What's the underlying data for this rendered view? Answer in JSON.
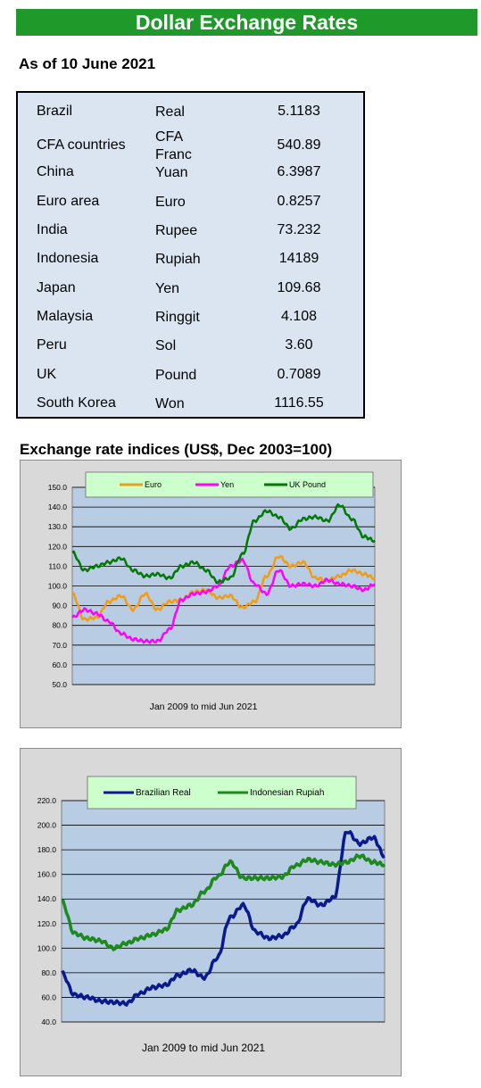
{
  "header": {
    "title": "Dollar Exchange Rates",
    "as_of": "As of 10 June 2021"
  },
  "rates": [
    {
      "country": "Brazil",
      "currency": "Real",
      "rate": "5.1183"
    },
    {
      "country": "CFA countries",
      "currency": "CFA Franc",
      "rate": "540.89"
    },
    {
      "country": "China",
      "currency": "Yuan",
      "rate": "6.3987"
    },
    {
      "country": "Euro area",
      "currency": "Euro",
      "rate": "0.8257"
    },
    {
      "country": "India",
      "currency": "Rupee",
      "rate": "73.232"
    },
    {
      "country": "Indonesia",
      "currency": "Rupiah",
      "rate": "14189"
    },
    {
      "country": "Japan",
      "currency": "Yen",
      "rate": "109.68"
    },
    {
      "country": "Malaysia",
      "currency": "Ringgit",
      "rate": "4.108"
    },
    {
      "country": "Peru",
      "currency": "Sol",
      "rate": "3.60"
    },
    {
      "country": "UK",
      "currency": "Pound",
      "rate": "0.7089"
    },
    {
      "country": "South Korea",
      "currency": "Won",
      "rate": "1116.55"
    }
  ],
  "index_title": "Exchange rate indices (US$, Dec 2003=100)",
  "chart_data": [
    {
      "type": "line",
      "title": "",
      "xlabel": "Jan 2009  to mid Jun 2021",
      "ylabel": "",
      "ylim": [
        50,
        150
      ],
      "yticks": [
        "50.0",
        "60.0",
        "70.0",
        "80.0",
        "90.0",
        "100.0",
        "110.0",
        "120.0",
        "130.0",
        "140.0",
        "150.0"
      ],
      "grid": true,
      "legend": "top",
      "x": [
        2009.0,
        2009.5,
        2010.0,
        2010.5,
        2011.0,
        2011.5,
        2012.0,
        2012.5,
        2013.0,
        2013.5,
        2014.0,
        2014.5,
        2015.0,
        2015.5,
        2016.0,
        2016.5,
        2017.0,
        2017.5,
        2018.0,
        2018.5,
        2019.0,
        2019.5,
        2020.0,
        2020.5,
        2021.0,
        2021.45
      ],
      "series": [
        {
          "name": "Euro",
          "color": "#f39c12",
          "values": [
            96,
            83,
            84,
            92,
            95,
            88,
            96,
            88,
            92,
            93,
            97,
            98,
            94,
            95,
            89,
            92,
            105,
            115,
            110,
            112,
            104,
            103,
            105,
            108,
            106,
            104
          ]
        },
        {
          "name": "Yen",
          "color": "#ff00ff",
          "values": [
            84,
            88,
            86,
            82,
            76,
            73,
            72,
            72,
            78,
            93,
            96,
            97,
            100,
            110,
            113,
            101,
            96,
            108,
            100,
            101,
            100,
            103,
            101,
            100,
            98,
            101
          ]
        },
        {
          "name": "UK Pound",
          "color": "#007a00",
          "values": [
            117,
            108,
            110,
            112,
            114,
            108,
            105,
            106,
            104,
            110,
            112,
            108,
            102,
            104,
            116,
            133,
            138,
            135,
            129,
            134,
            135,
            133,
            141,
            134,
            125,
            123
          ]
        }
      ]
    },
    {
      "type": "line",
      "title": "",
      "xlabel": "Jan 2009  to mid Jun 2021",
      "ylabel": "",
      "ylim": [
        40,
        220
      ],
      "yticks": [
        "40.0",
        "60.0",
        "80.0",
        "100.0",
        "120.0",
        "140.0",
        "160.0",
        "180.0",
        "200.0",
        "220.0"
      ],
      "grid": true,
      "legend": "top",
      "x": [
        2009.0,
        2009.5,
        2010.0,
        2010.5,
        2011.0,
        2011.5,
        2012.0,
        2012.5,
        2013.0,
        2013.5,
        2014.0,
        2014.5,
        2015.0,
        2015.5,
        2016.0,
        2016.5,
        2017.0,
        2017.5,
        2018.0,
        2018.5,
        2019.0,
        2019.5,
        2020.0,
        2020.5,
        2021.0,
        2021.45
      ],
      "series": [
        {
          "name": "Brazilian Real",
          "color": "#0a1a8c",
          "values": [
            80,
            62,
            60,
            57,
            56,
            55,
            63,
            68,
            70,
            78,
            82,
            76,
            92,
            125,
            135,
            113,
            108,
            110,
            118,
            140,
            135,
            141,
            195,
            185,
            190,
            175
          ]
        },
        {
          "name": "Indonesian Rupiah",
          "color": "#1e8a1e",
          "values": [
            138,
            112,
            108,
            106,
            100,
            104,
            108,
            111,
            115,
            131,
            135,
            146,
            158,
            170,
            157,
            157,
            157,
            158,
            167,
            172,
            170,
            168,
            170,
            175,
            170,
            168
          ]
        }
      ]
    }
  ]
}
